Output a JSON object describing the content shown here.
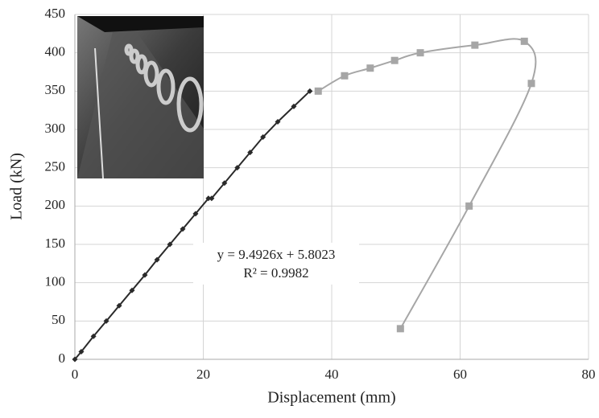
{
  "chart_data": {
    "type": "line",
    "xlabel": "Displacement (mm)",
    "ylabel": "Load (kN)",
    "annotations": [
      "y = 9.4926x + 5.8023",
      "R² = 0.9982"
    ],
    "xlim": [
      0,
      80
    ],
    "xticks": [
      0,
      20,
      40,
      60,
      80
    ],
    "ylim": [
      0,
      450
    ],
    "yticks": [
      0,
      50,
      100,
      150,
      200,
      250,
      300,
      350,
      400,
      450
    ],
    "grid": true,
    "series": [
      {
        "color": "#2a2a2a",
        "marker": "diamond",
        "smooth": false,
        "x": [
          0,
          1.0,
          2.9,
          4.9,
          6.9,
          8.9,
          10.9,
          12.8,
          14.8,
          16.8,
          18.8,
          20.8,
          21.3,
          23.3,
          25.3,
          27.3,
          29.3,
          31.6,
          34.1,
          36.6
        ],
        "values": [
          0,
          10,
          30,
          50,
          70,
          90,
          110,
          130,
          150,
          170,
          190,
          210,
          210,
          230,
          250,
          270,
          290,
          310,
          330,
          350
        ]
      },
      {
        "color": "#a6a6a6",
        "marker": "square",
        "smooth": true,
        "x": [
          37.9,
          42.0,
          46.0,
          49.8,
          53.8,
          62.3,
          70.0,
          71.1,
          61.4,
          50.7
        ],
        "values": [
          350,
          370,
          380,
          390,
          400,
          410,
          415,
          360,
          200,
          40
        ]
      }
    ]
  }
}
